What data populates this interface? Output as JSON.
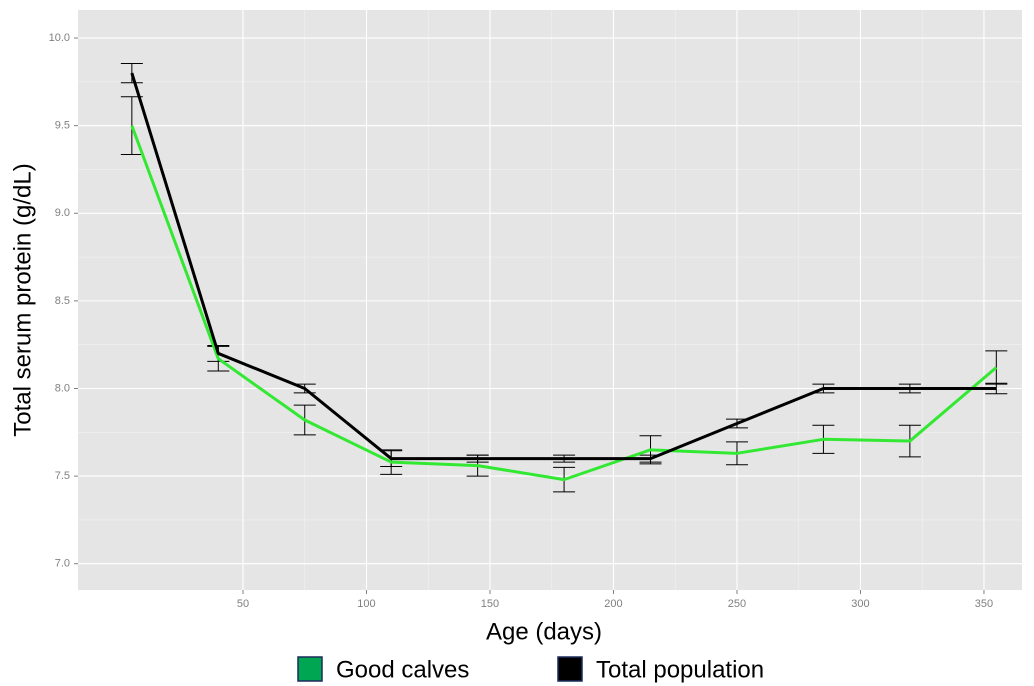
{
  "chart_data": {
    "type": "line",
    "xlabel": "Age (days)",
    "ylabel": "Total serum protein (g/dL)",
    "x": [
      5,
      40,
      75,
      110,
      145,
      180,
      215,
      250,
      285,
      320,
      355
    ],
    "series": [
      {
        "name": "Good calves",
        "color": "#33e833",
        "legend_color": "#00a651",
        "values": [
          9.5,
          8.17,
          7.82,
          7.58,
          7.56,
          7.48,
          7.65,
          7.63,
          7.71,
          7.7,
          8.12
        ],
        "errors": [
          0.165,
          0.07,
          0.085,
          0.07,
          0.06,
          0.07,
          0.08,
          0.065,
          0.08,
          0.09,
          0.095
        ]
      },
      {
        "name": "Total population",
        "color": "#000000",
        "legend_color": "#000000",
        "values": [
          9.8,
          8.2,
          8.0,
          7.6,
          7.6,
          7.6,
          7.6,
          7.8,
          8.0,
          8.0,
          8.0
        ],
        "errors": [
          0.055,
          0.045,
          0.025,
          0.045,
          0.02,
          0.02,
          0.02,
          0.025,
          0.025,
          0.025,
          0.03
        ]
      }
    ],
    "xlim": [
      -16.8,
      365.4
    ],
    "ylim": [
      6.85,
      10.16
    ],
    "xticks": [
      50,
      100,
      150,
      200,
      250,
      300,
      350
    ],
    "yticks": [
      {
        "value": 7.0,
        "label": "7.0"
      },
      7.5,
      {
        "value": 8.0,
        "label": "8.0"
      },
      8.5,
      {
        "value": 9.0,
        "label": "9.0"
      },
      9.5,
      {
        "value": 10.0,
        "label": "10.0"
      }
    ],
    "grid": true,
    "legend": "bottom"
  }
}
